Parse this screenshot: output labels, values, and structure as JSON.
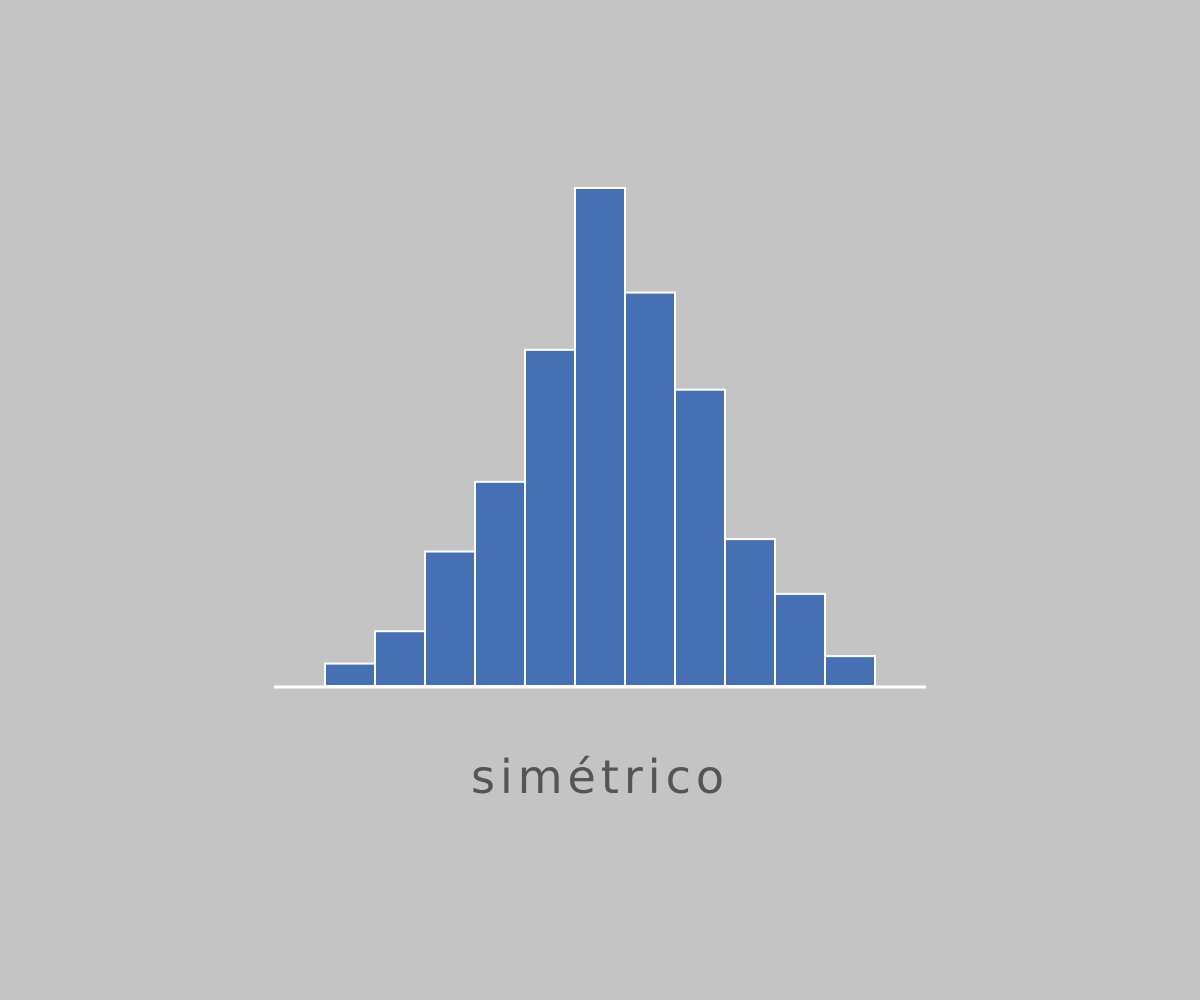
{
  "background": "#c4c4c4",
  "bar_color": "#4571b4",
  "edge_color": "#ffffff",
  "caption_color": "#555555",
  "caption": "simétrico",
  "chart_data": {
    "type": "bar",
    "histogram": true,
    "values": [
      4.5,
      11,
      27,
      41,
      67.5,
      100,
      79,
      59.5,
      29.5,
      18.5,
      6
    ],
    "ylim": [
      0,
      100
    ],
    "grid": false,
    "axes": "baseline-only",
    "title": "",
    "xlabel": "",
    "ylabel": ""
  }
}
